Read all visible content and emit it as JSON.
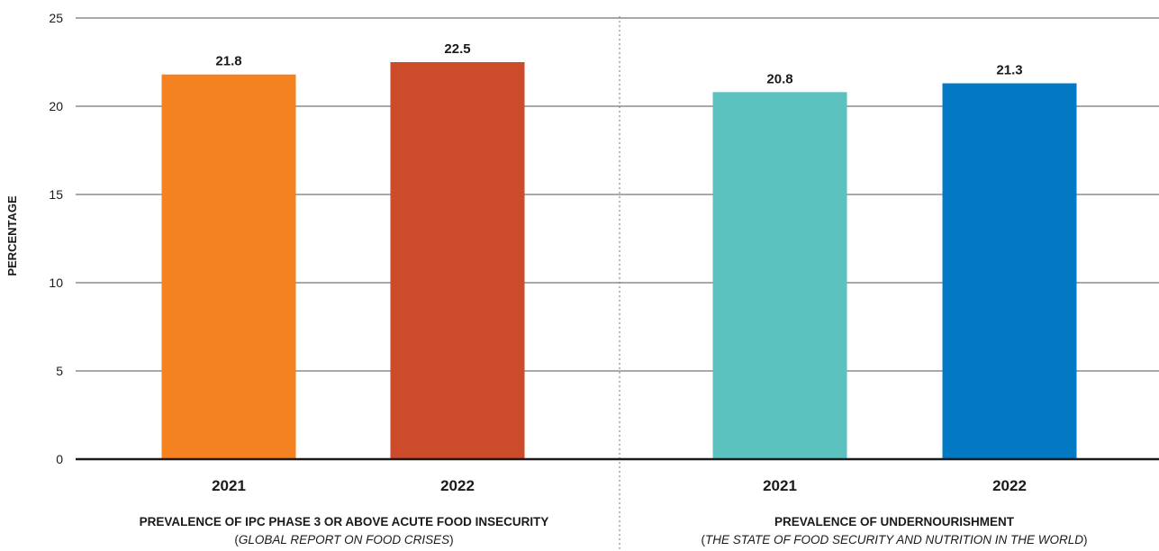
{
  "chart_data": {
    "type": "bar",
    "ylabel": "PERCENTAGE",
    "ylim": [
      0,
      25
    ],
    "yticks": [
      0,
      5,
      10,
      15,
      20,
      25
    ],
    "grid": true,
    "groups": [
      {
        "title": "PREVALENCE OF IPC PHASE 3 OR ABOVE ACUTE FOOD INSECURITY",
        "source": "GLOBAL REPORT ON FOOD CRISES",
        "categories": [
          "2021",
          "2022"
        ],
        "values": [
          21.8,
          22.5
        ],
        "value_labels": [
          "21.8",
          "22.5"
        ],
        "colors": [
          "#f58220",
          "#cb4b2b"
        ]
      },
      {
        "title": "PREVALENCE OF UNDERNOURISHMENT",
        "source": "THE STATE OF FOOD SECURITY AND NUTRITION IN THE WORLD",
        "categories": [
          "2021",
          "2022"
        ],
        "values": [
          20.8,
          21.3
        ],
        "value_labels": [
          "20.8",
          "21.3"
        ],
        "colors": [
          "#5bc2bf",
          "#0479c3"
        ]
      }
    ]
  }
}
